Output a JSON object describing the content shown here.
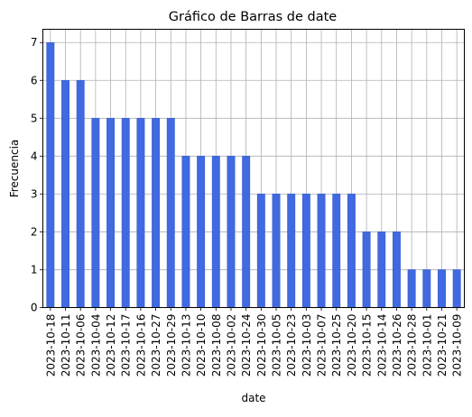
{
  "chart_data": {
    "type": "bar",
    "title": "Gráfico de Barras de date",
    "xlabel": "date",
    "ylabel": "Frecuencia",
    "categories": [
      "2023-10-18",
      "2023-10-11",
      "2023-10-06",
      "2023-10-04",
      "2023-10-12",
      "2023-10-17",
      "2023-10-16",
      "2023-10-27",
      "2023-10-29",
      "2023-10-13",
      "2023-10-10",
      "2023-10-08",
      "2023-10-02",
      "2023-10-24",
      "2023-10-30",
      "2023-10-05",
      "2023-10-23",
      "2023-10-03",
      "2023-10-07",
      "2023-10-25",
      "2023-10-20",
      "2023-10-15",
      "2023-10-14",
      "2023-10-26",
      "2023-10-28",
      "2023-10-01",
      "2023-10-21",
      "2023-10-09"
    ],
    "values": [
      7,
      6,
      6,
      5,
      5,
      5,
      5,
      5,
      5,
      4,
      4,
      4,
      4,
      4,
      3,
      3,
      3,
      3,
      3,
      3,
      3,
      2,
      2,
      2,
      1,
      1,
      1,
      1
    ],
    "yticks": [
      "0",
      "1",
      "2",
      "3",
      "4",
      "5",
      "6",
      "7"
    ],
    "ylim": [
      0,
      7.35
    ],
    "grid": true,
    "bar_color": "#4169e1",
    "bar_edge_color": "#3a5fcd"
  }
}
